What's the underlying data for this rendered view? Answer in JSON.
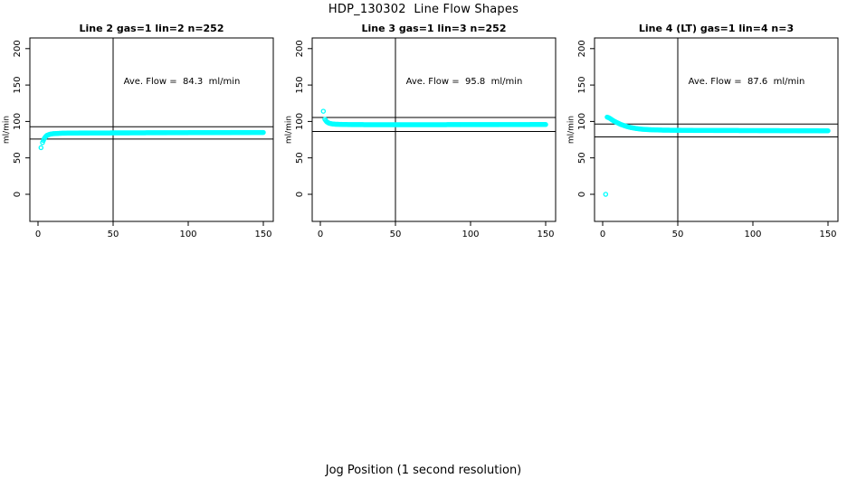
{
  "page": {
    "title": "HDP_130302  Line Flow Shapes",
    "outer_xlabel": "Jog Position (1 second resolution)",
    "background_color": "#ffffff",
    "axis_color": "#000000",
    "marker_color": "#00ffff"
  },
  "chart_data": [
    {
      "type": "scatter",
      "title": "Line 2 gas=1 lin=2 n=252",
      "ylabel": "ml/min",
      "annotation": "Ave. Flow =  84.3  ml/min",
      "ave_flow_ml_min": 84.3,
      "n": 252,
      "x_ticks": [
        0,
        50,
        100,
        150
      ],
      "y_ticks": [
        0,
        50,
        100,
        150,
        200
      ],
      "xlim": [
        -6,
        157
      ],
      "ylim": [
        -37,
        215
      ],
      "vline_x": 50,
      "hlines": [
        92.7,
        75.9
      ],
      "outlier_points": [
        [
          2,
          64
        ]
      ],
      "curve_anchors": [
        [
          3,
          71
        ],
        [
          4,
          76
        ],
        [
          5,
          79
        ],
        [
          6,
          81
        ],
        [
          8,
          82.5
        ],
        [
          10,
          83.2
        ],
        [
          15,
          83.8
        ],
        [
          20,
          84
        ],
        [
          30,
          84.2
        ],
        [
          50,
          84.3
        ],
        [
          80,
          84.5
        ],
        [
          120,
          84.7
        ],
        [
          150,
          84.9
        ]
      ],
      "band_x_range": [
        3,
        150
      ],
      "n_markers_rendered": 250,
      "marker": "open-circle",
      "grid": false
    },
    {
      "type": "scatter",
      "title": "Line 3 gas=1 lin=3 n=252",
      "ylabel": "ml/min",
      "annotation": "Ave. Flow =  95.8  ml/min",
      "ave_flow_ml_min": 95.8,
      "n": 252,
      "x_ticks": [
        0,
        50,
        100,
        150
      ],
      "y_ticks": [
        0,
        50,
        100,
        150,
        200
      ],
      "xlim": [
        -6,
        157
      ],
      "ylim": [
        -37,
        215
      ],
      "vline_x": 50,
      "hlines": [
        105.4,
        86.2
      ],
      "outlier_points": [
        [
          2,
          114
        ]
      ],
      "curve_anchors": [
        [
          3,
          103
        ],
        [
          4,
          100
        ],
        [
          5,
          98.5
        ],
        [
          6,
          97.5
        ],
        [
          8,
          96.6
        ],
        [
          10,
          96.2
        ],
        [
          15,
          95.9
        ],
        [
          20,
          95.7
        ],
        [
          30,
          95.6
        ],
        [
          50,
          95.6
        ],
        [
          80,
          95.6
        ],
        [
          120,
          95.7
        ],
        [
          150,
          95.8
        ]
      ],
      "band_x_range": [
        3,
        150
      ],
      "n_markers_rendered": 250,
      "marker": "open-circle",
      "grid": false
    },
    {
      "type": "scatter",
      "title": "Line 4 (LT) gas=1 lin=4 n=3",
      "ylabel": "ml/min",
      "annotation": "Ave. Flow =  87.6  ml/min",
      "ave_flow_ml_min": 87.6,
      "n": 3,
      "x_ticks": [
        0,
        50,
        100,
        150
      ],
      "y_ticks": [
        0,
        50,
        100,
        150,
        200
      ],
      "xlim": [
        -6,
        157
      ],
      "ylim": [
        -37,
        215
      ],
      "vline_x": 50,
      "hlines": [
        96.4,
        78.8
      ],
      "outlier_points": [
        [
          2,
          0
        ]
      ],
      "curve_anchors": [
        [
          3,
          106
        ],
        [
          4,
          105.2
        ],
        [
          5,
          104
        ],
        [
          6,
          102.5
        ],
        [
          8,
          100
        ],
        [
          10,
          98
        ],
        [
          12,
          96
        ],
        [
          15,
          93.8
        ],
        [
          18,
          92
        ],
        [
          22,
          90.4
        ],
        [
          26,
          89.4
        ],
        [
          30,
          88.8
        ],
        [
          40,
          88.1
        ],
        [
          60,
          87.7
        ],
        [
          100,
          87.5
        ],
        [
          150,
          87.2
        ]
      ],
      "band_x_range": [
        3,
        150
      ],
      "n_markers_rendered": 250,
      "marker": "open-circle",
      "grid": false
    }
  ]
}
